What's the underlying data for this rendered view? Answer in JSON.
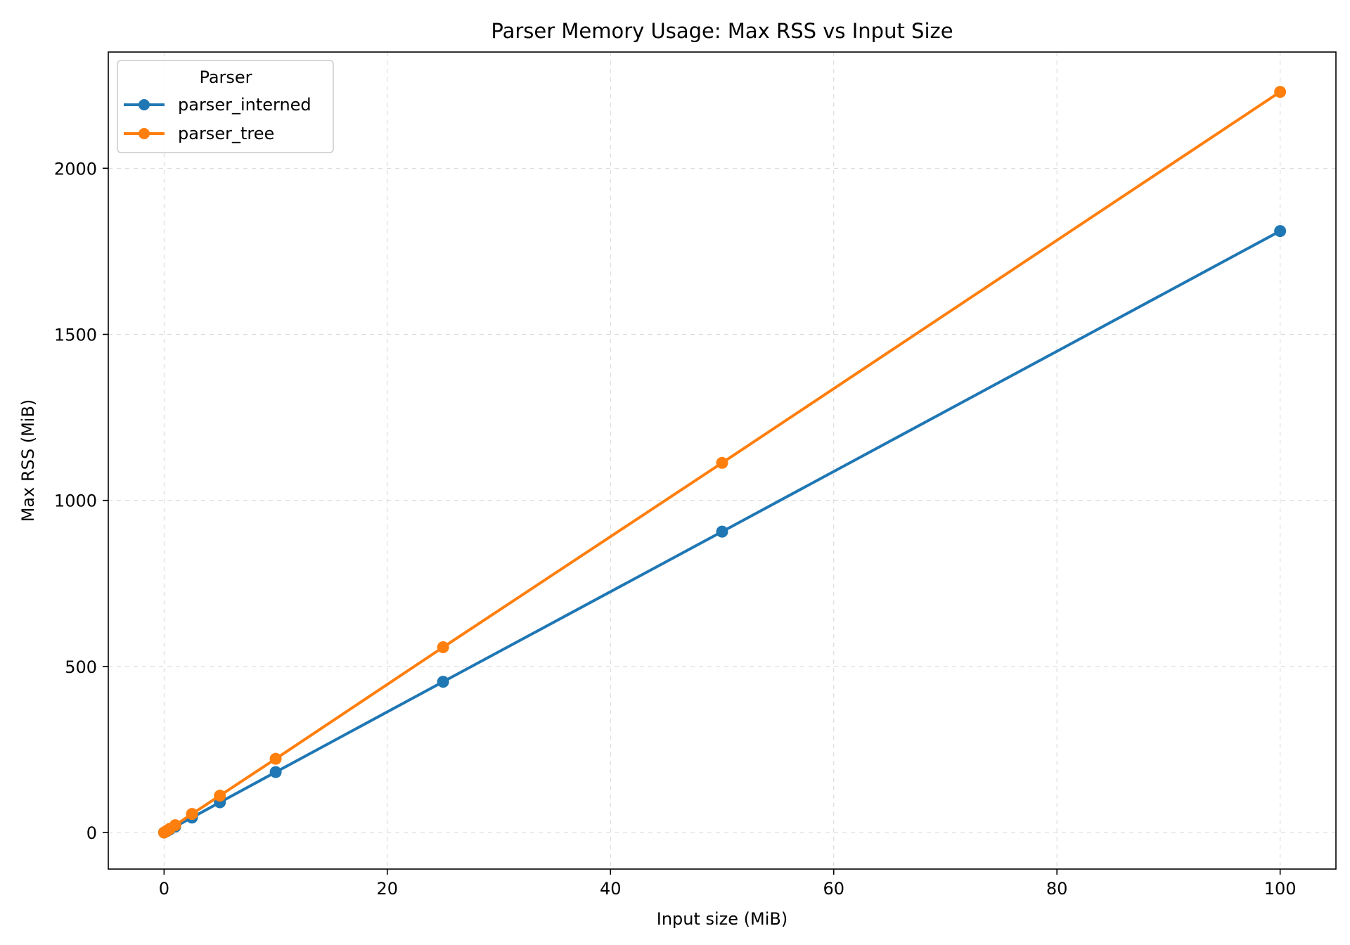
{
  "chart_data": {
    "type": "line",
    "title": "Parser Memory Usage: Max RSS vs Input Size",
    "xlabel": "Input size (MiB)",
    "ylabel": "Max RSS (MiB)",
    "xlim": [
      -5,
      105
    ],
    "ylim": [
      -110,
      2350
    ],
    "xticks": [
      0,
      20,
      40,
      60,
      80,
      100
    ],
    "yticks": [
      0,
      500,
      1000,
      1500,
      2000
    ],
    "grid": true,
    "legend": {
      "title": "Parser",
      "placement": "top-left"
    },
    "series": [
      {
        "name": "parser_interned",
        "color": "#1f77b4",
        "marker": "circle",
        "x": [
          0,
          0.25,
          0.5,
          1,
          2.5,
          5,
          10,
          25,
          50,
          100
        ],
        "y": [
          0,
          4.5,
          9,
          18,
          45,
          91,
          182,
          454,
          906,
          1811
        ]
      },
      {
        "name": "parser_tree",
        "color": "#ff7f0e",
        "marker": "circle",
        "x": [
          0,
          0.25,
          0.5,
          1,
          2.5,
          5,
          10,
          25,
          50,
          100
        ],
        "y": [
          0,
          5.5,
          11,
          22,
          56,
          111,
          222,
          558,
          1113,
          2230
        ]
      }
    ]
  }
}
